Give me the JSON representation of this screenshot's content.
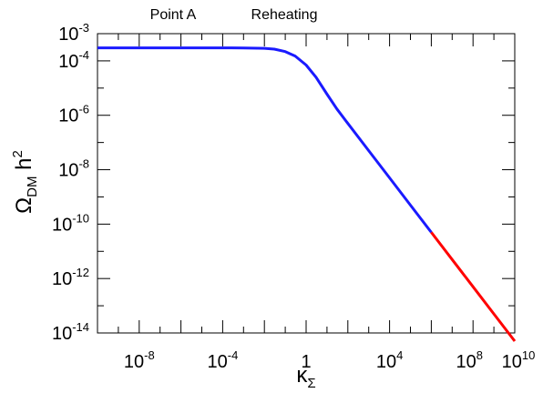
{
  "chart_data": {
    "type": "line",
    "title": "",
    "annotations": [
      "Point A",
      "Reheating"
    ],
    "xlabel": {
      "base": "κ",
      "sub": "Σ"
    },
    "ylabel": {
      "base": "Ω",
      "sub": "DM",
      "tail": " h",
      "sup": "2"
    },
    "x_scale": "log",
    "y_scale": "log",
    "xlim": [
      1e-10,
      10000000000.0
    ],
    "ylim": [
      1e-14,
      0.001
    ],
    "grid": false,
    "x_ticks": [
      {
        "value": 1e-08,
        "base": "10",
        "exp": "-8"
      },
      {
        "value": 0.0001,
        "base": "10",
        "exp": "-4"
      },
      {
        "value": 1,
        "base": "1",
        "exp": ""
      },
      {
        "value": 10000.0,
        "base": "10",
        "exp": "4"
      },
      {
        "value": 100000000.0,
        "base": "10",
        "exp": "8"
      },
      {
        "value": 10000000000.0,
        "base": "10",
        "exp": "10"
      }
    ],
    "y_ticks": [
      {
        "value": 0.001,
        "base": "10",
        "exp": "-3"
      },
      {
        "value": 0.0001,
        "base": "10",
        "exp": "-4"
      },
      {
        "value": 1e-06,
        "base": "10",
        "exp": "-6"
      },
      {
        "value": 1e-08,
        "base": "10",
        "exp": "-8"
      },
      {
        "value": 1e-10,
        "base": "10",
        "exp": "-10"
      },
      {
        "value": 1e-12,
        "base": "10",
        "exp": "-12"
      },
      {
        "value": 1e-14,
        "base": "10",
        "exp": "-14"
      }
    ],
    "series": [
      {
        "color": "#1a1aff",
        "x": [
          1e-10,
          1e-08,
          1e-06,
          0.0001,
          0.001,
          0.01,
          0.03,
          0.1,
          0.3,
          1,
          3,
          10,
          30,
          100,
          1000,
          10000.0,
          100000.0,
          1000000.0
        ],
        "y": [
          0.0003,
          0.0003,
          0.0003,
          0.0003,
          0.000298,
          0.00029,
          0.00027,
          0.00022,
          0.00015,
          7e-05,
          2.5e-05,
          6e-06,
          1.7e-06,
          5e-07,
          5e-08,
          5e-09,
          5e-10,
          5e-11
        ]
      },
      {
        "color": "#ff0000",
        "x": [
          1000000.0,
          10000000.0,
          100000000.0,
          1000000000.0,
          10000000000.0
        ],
        "y": [
          5e-11,
          5e-12,
          5e-13,
          5e-14,
          5e-15
        ]
      }
    ]
  }
}
